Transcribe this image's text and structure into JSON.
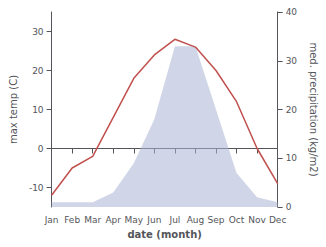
{
  "chart_data": {
    "type": "line",
    "xlabel": "date (month)",
    "ylabel": "max temp (C)",
    "y2label": "med. precipitation (kg/m2)",
    "categories": [
      "Jan",
      "Feb",
      "Mar",
      "Apr",
      "May",
      "Jun",
      "Jul",
      "Aug",
      "Sep",
      "Oct",
      "Nov",
      "Dec"
    ],
    "series": [
      {
        "type": "area",
        "axis": "y2",
        "color": "#aab4d4",
        "values": [
          1,
          1,
          1,
          3,
          9,
          18,
          33,
          33,
          20,
          7,
          2,
          1
        ]
      },
      {
        "type": "line",
        "color": "#c0504d",
        "values": [
          -12,
          -5,
          -2,
          8,
          18,
          24,
          28,
          26,
          20,
          12,
          0,
          -9
        ]
      }
    ],
    "ylim": [
      -15,
      35
    ],
    "yticks": [
      -10,
      0,
      10,
      20,
      30
    ],
    "y2lim": [
      0,
      40
    ],
    "y2ticks": [
      0,
      10,
      20,
      30,
      40
    ],
    "grid": false
  }
}
